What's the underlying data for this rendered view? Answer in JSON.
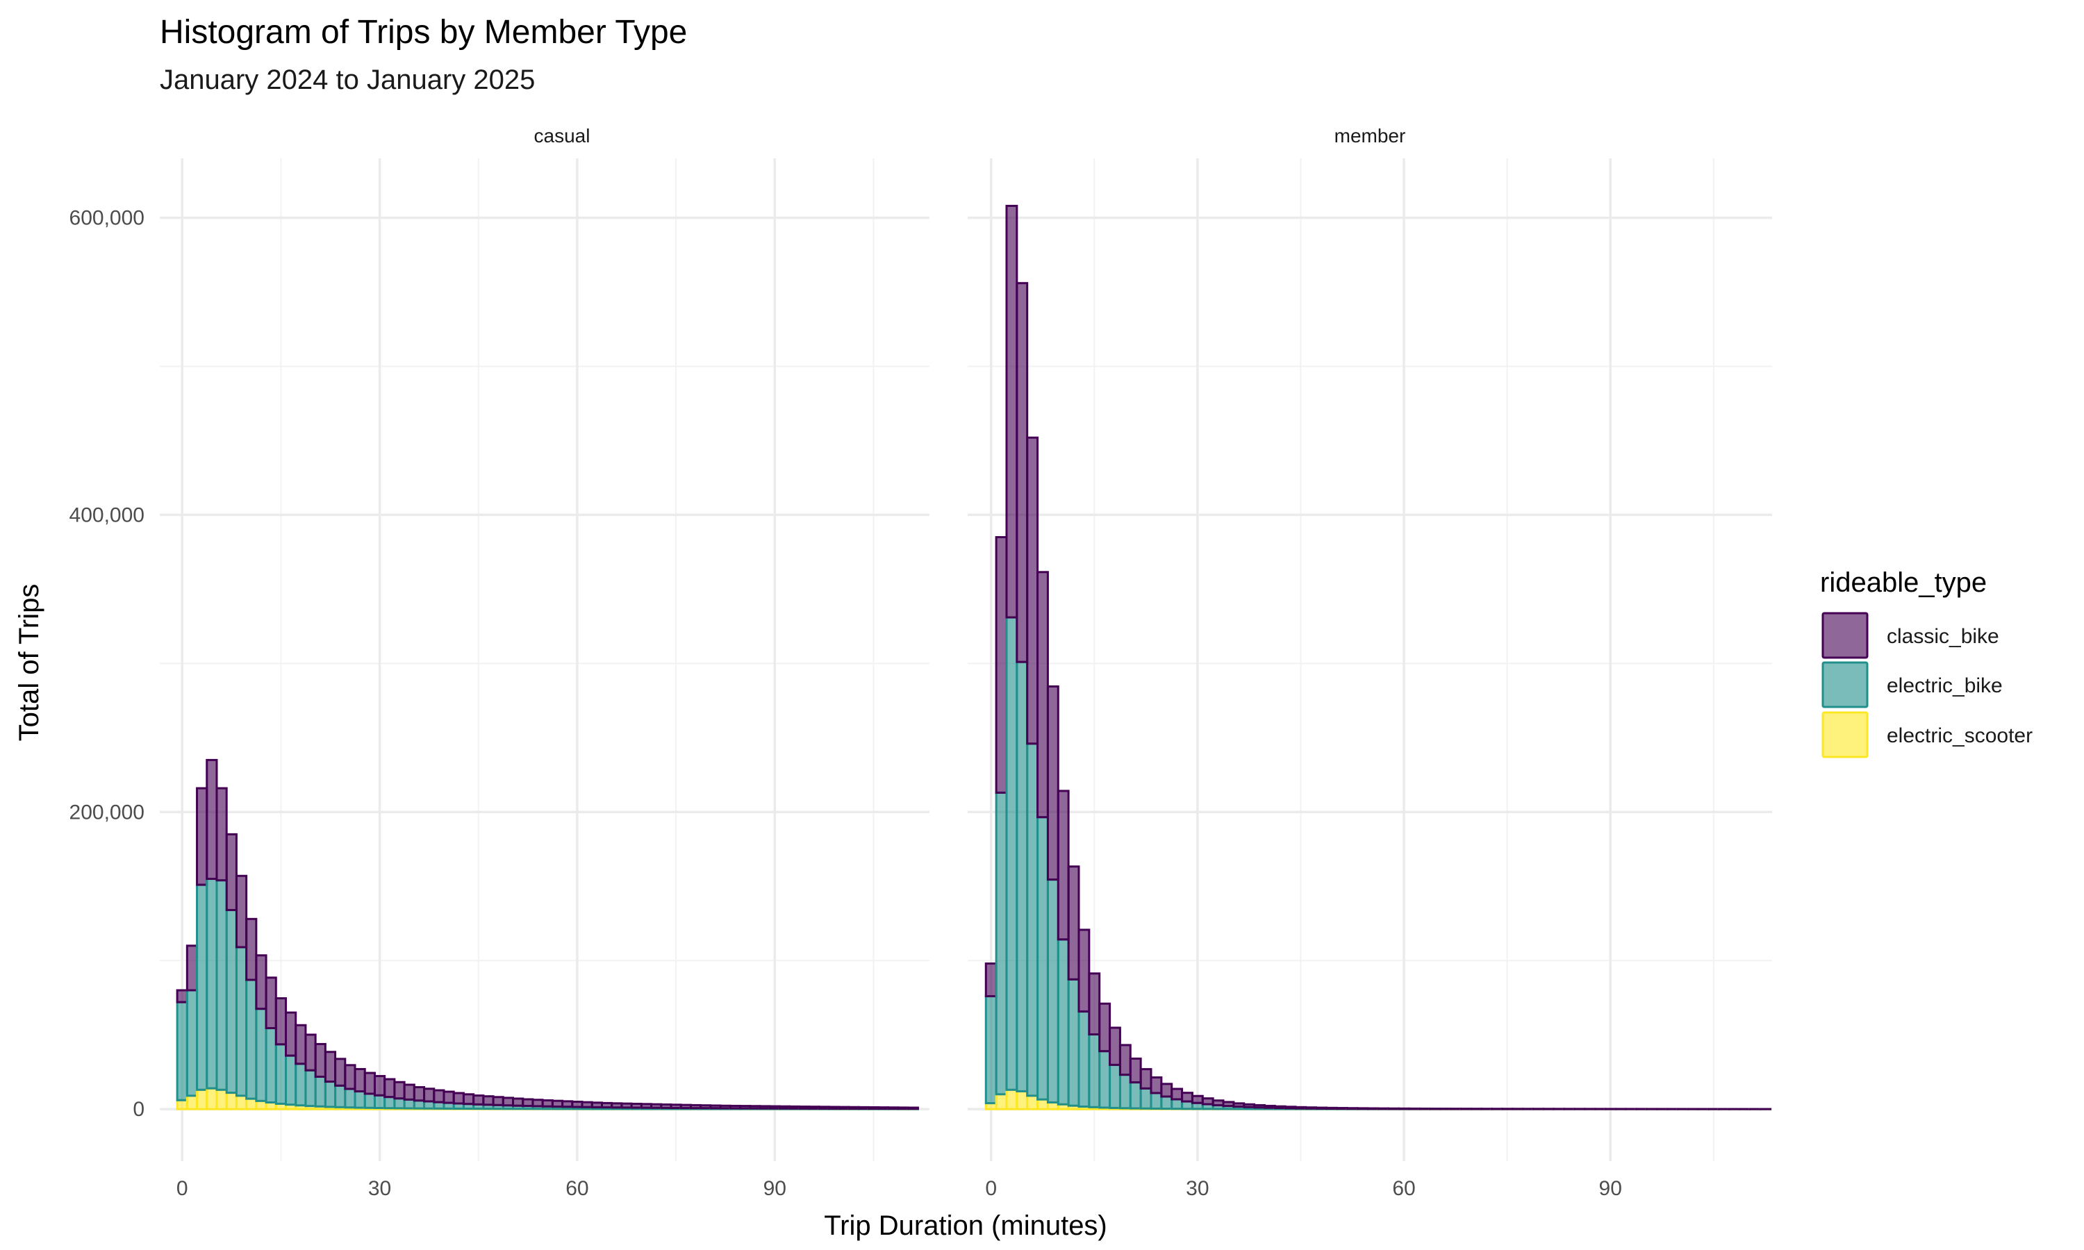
{
  "chart_data": {
    "type": "bar",
    "stacked": true,
    "title": "Histogram of Trips by Member Type",
    "subtitle": "January 2024 to January 2025",
    "xlabel": "Trip Duration (minutes)",
    "ylabel": "Total of Trips",
    "xlim": [
      -3.4,
      113.5
    ],
    "ylim": [
      -35000,
      640000
    ],
    "x_ticks": [
      0,
      30,
      60,
      90
    ],
    "x_tick_labels": [
      "0",
      "30",
      "60",
      "90"
    ],
    "y_ticks": [
      0,
      200000,
      400000,
      600000
    ],
    "y_tick_labels": [
      "0",
      "200,000",
      "400,000",
      "600,000"
    ],
    "bin_width": 1.5,
    "grid": true,
    "legend": {
      "title": "rideable_type",
      "position": "right",
      "entries": [
        {
          "name": "classic_bike",
          "fill": "#440154",
          "alpha": 0.6,
          "stroke": "#440154"
        },
        {
          "name": "electric_bike",
          "fill": "#21908C",
          "alpha": 0.6,
          "stroke": "#21908C"
        },
        {
          "name": "electric_scooter",
          "fill": "#FDE725",
          "alpha": 0.6,
          "stroke": "#FDE725"
        }
      ]
    },
    "facets": [
      {
        "label": "casual",
        "bin_centers": [
          0,
          1.5,
          3,
          4.5,
          6,
          7.5,
          9,
          10.5,
          12,
          13.5,
          15,
          16.5,
          18,
          19.5,
          21,
          22.5,
          24,
          25.5,
          27,
          28.5,
          30,
          31.5,
          33,
          34.5,
          36,
          37.5,
          39,
          40.5,
          42,
          43.5,
          45,
          46.5,
          48,
          49.5,
          51,
          52.5,
          54,
          55.5,
          57,
          58.5,
          60,
          61.5,
          63,
          64.5,
          66,
          67.5,
          69,
          70.5,
          72,
          73.5,
          75,
          76.5,
          78,
          79.5,
          81,
          82.5,
          84,
          85.5,
          87,
          88.5,
          90,
          91.5,
          93,
          94.5,
          96,
          97.5,
          99,
          100.5,
          102,
          103.5,
          105,
          106.5,
          108,
          109.5,
          111
        ],
        "series": [
          {
            "name": "classic_bike",
            "values": [
              8000,
              30000,
              65000,
              80000,
              62000,
              51000,
              48000,
              41000,
              36000,
              34000,
              31000,
              29000,
              26000,
              24000,
              22000,
              20000,
              18000,
              16000,
              15000,
              14000,
              13000,
              12000,
              11000,
              10000,
              9000,
              8500,
              8000,
              7500,
              7000,
              6500,
              6000,
              5700,
              5400,
              5100,
              4800,
              4500,
              4300,
              4100,
              3900,
              3700,
              3500,
              3300,
              3100,
              2900,
              2800,
              2700,
              2600,
              2500,
              2400,
              2300,
              2200,
              2100,
              2000,
              1900,
              1800,
              1700,
              1650,
              1600,
              1550,
              1500,
              1450,
              1400,
              1350,
              1300,
              1250,
              1200,
              1150,
              1100,
              1050,
              1000,
              950,
              900,
              850,
              800,
              750
            ]
          },
          {
            "name": "electric_bike",
            "values": [
              66000,
              71000,
              138000,
              141000,
              141000,
              123000,
              100000,
              80000,
              62000,
              50000,
              40000,
              33000,
              28000,
              24000,
              20000,
              17000,
              14500,
              12500,
              11000,
              9500,
              8500,
              7500,
              6600,
              5900,
              5300,
              4800,
              4300,
              3900,
              3500,
              3200,
              2900,
              2700,
              2500,
              2300,
              2100,
              1950,
              1800,
              1650,
              1550,
              1450,
              1350,
              1250,
              1150,
              1100,
              1000,
              950,
              900,
              850,
              800,
              750,
              700,
              650,
              620,
              590,
              560,
              530,
              500,
              480,
              460,
              440,
              420,
              400,
              380,
              360,
              340,
              320,
              300,
              290,
              280,
              270,
              260,
              250,
              240,
              230,
              220
            ]
          },
          {
            "name": "electric_scooter",
            "values": [
              6000,
              9000,
              13000,
              14000,
              13000,
              11000,
              9000,
              7000,
              5500,
              4500,
              3600,
              3000,
              2500,
              2100,
              1800,
              1500,
              1300,
              1100,
              950,
              850,
              750,
              650,
              580,
              520,
              460,
              410,
              370,
              330,
              300,
              270,
              250,
              230,
              210,
              190,
              175,
              160,
              150,
              140,
              130,
              120,
              110,
              100,
              95,
              90,
              85,
              80,
              75,
              70,
              65,
              60,
              58,
              55,
              52,
              50,
              48,
              46,
              44,
              42,
              40,
              38,
              36,
              34,
              32,
              30,
              28,
              26,
              24,
              22,
              20,
              19,
              18,
              17,
              16,
              15,
              14
            ]
          }
        ]
      },
      {
        "label": "member",
        "bin_centers": [
          0,
          1.5,
          3,
          4.5,
          6,
          7.5,
          9,
          10.5,
          12,
          13.5,
          15,
          16.5,
          18,
          19.5,
          21,
          22.5,
          24,
          25.5,
          27,
          28.5,
          30,
          31.5,
          33,
          34.5,
          36,
          37.5,
          39,
          40.5,
          42,
          43.5,
          45,
          46.5,
          48,
          49.5,
          51,
          52.5,
          54,
          55.5,
          57,
          58.5,
          60,
          61.5,
          63,
          64.5,
          66,
          67.5,
          69,
          70.5,
          72,
          73.5,
          75,
          76.5,
          78,
          79.5,
          81,
          82.5,
          84,
          85.5,
          87,
          88.5,
          90,
          91.5,
          93,
          94.5,
          96,
          97.5,
          99,
          100.5,
          102,
          103.5,
          105,
          106.5,
          108,
          109.5,
          111,
          112.5
        ],
        "series": [
          {
            "name": "classic_bike",
            "values": [
              22000,
              172000,
              277000,
              255000,
              206000,
              165000,
              130000,
              100000,
              76000,
              55000,
              41000,
              32000,
              25000,
              20000,
              16000,
              13000,
              10500,
              8500,
              7000,
              5800,
              4700,
              3900,
              3200,
              2700,
              2200,
              1850,
              1550,
              1300,
              1100,
              950,
              800,
              700,
              610,
              540,
              480,
              430,
              390,
              350,
              320,
              290,
              270,
              250,
              230,
              215,
              200,
              190,
              180,
              170,
              160,
              150,
              145,
              140,
              135,
              130,
              125,
              120,
              115,
              110,
              105,
              100,
              95,
              90,
              85,
              80,
              75,
              70,
              65,
              60,
              55,
              50,
              45,
              40,
              35,
              30,
              25,
              20
            ]
          },
          {
            "name": "electric_bike",
            "values": [
              72000,
              203000,
              318000,
              289000,
              237000,
              190000,
              150000,
              111000,
              85000,
              64000,
              49000,
              38000,
              29000,
              22500,
              17500,
              13500,
              10500,
              8200,
              6400,
              5000,
              4000,
              3200,
              2500,
              2000,
              1600,
              1300,
              1050,
              850,
              700,
              580,
              480,
              400,
              330,
              280,
              240,
              205,
              175,
              150,
              130,
              115,
              100,
              90,
              80,
              72,
              65,
              58,
              52,
              47,
              43,
              39,
              36,
              33,
              30,
              28,
              26,
              24,
              22,
              20,
              19,
              18,
              17,
              16,
              15,
              14,
              13,
              12,
              11,
              10,
              9,
              8,
              7,
              6,
              5,
              4,
              3,
              3
            ]
          },
          {
            "name": "electric_scooter",
            "values": [
              4000,
              10000,
              13000,
              12000,
              9000,
              6500,
              4500,
              3200,
              2300,
              1700,
              1300,
              1000,
              780,
              620,
              500,
              400,
              320,
              260,
              210,
              170,
              140,
              115,
              95,
              80,
              68,
              58,
              50,
              43,
              37,
              32,
              28,
              25,
              22,
              20,
              18,
              16,
              14,
              13,
              12,
              11,
              10,
              9,
              8,
              8,
              7,
              7,
              6,
              6,
              5,
              5,
              5,
              4,
              4,
              4,
              3,
              3,
              3,
              3,
              2,
              2,
              2,
              2,
              2,
              2,
              1,
              1,
              1,
              1,
              1,
              1,
              1,
              1,
              1,
              1,
              1,
              1
            ]
          }
        ]
      }
    ]
  }
}
